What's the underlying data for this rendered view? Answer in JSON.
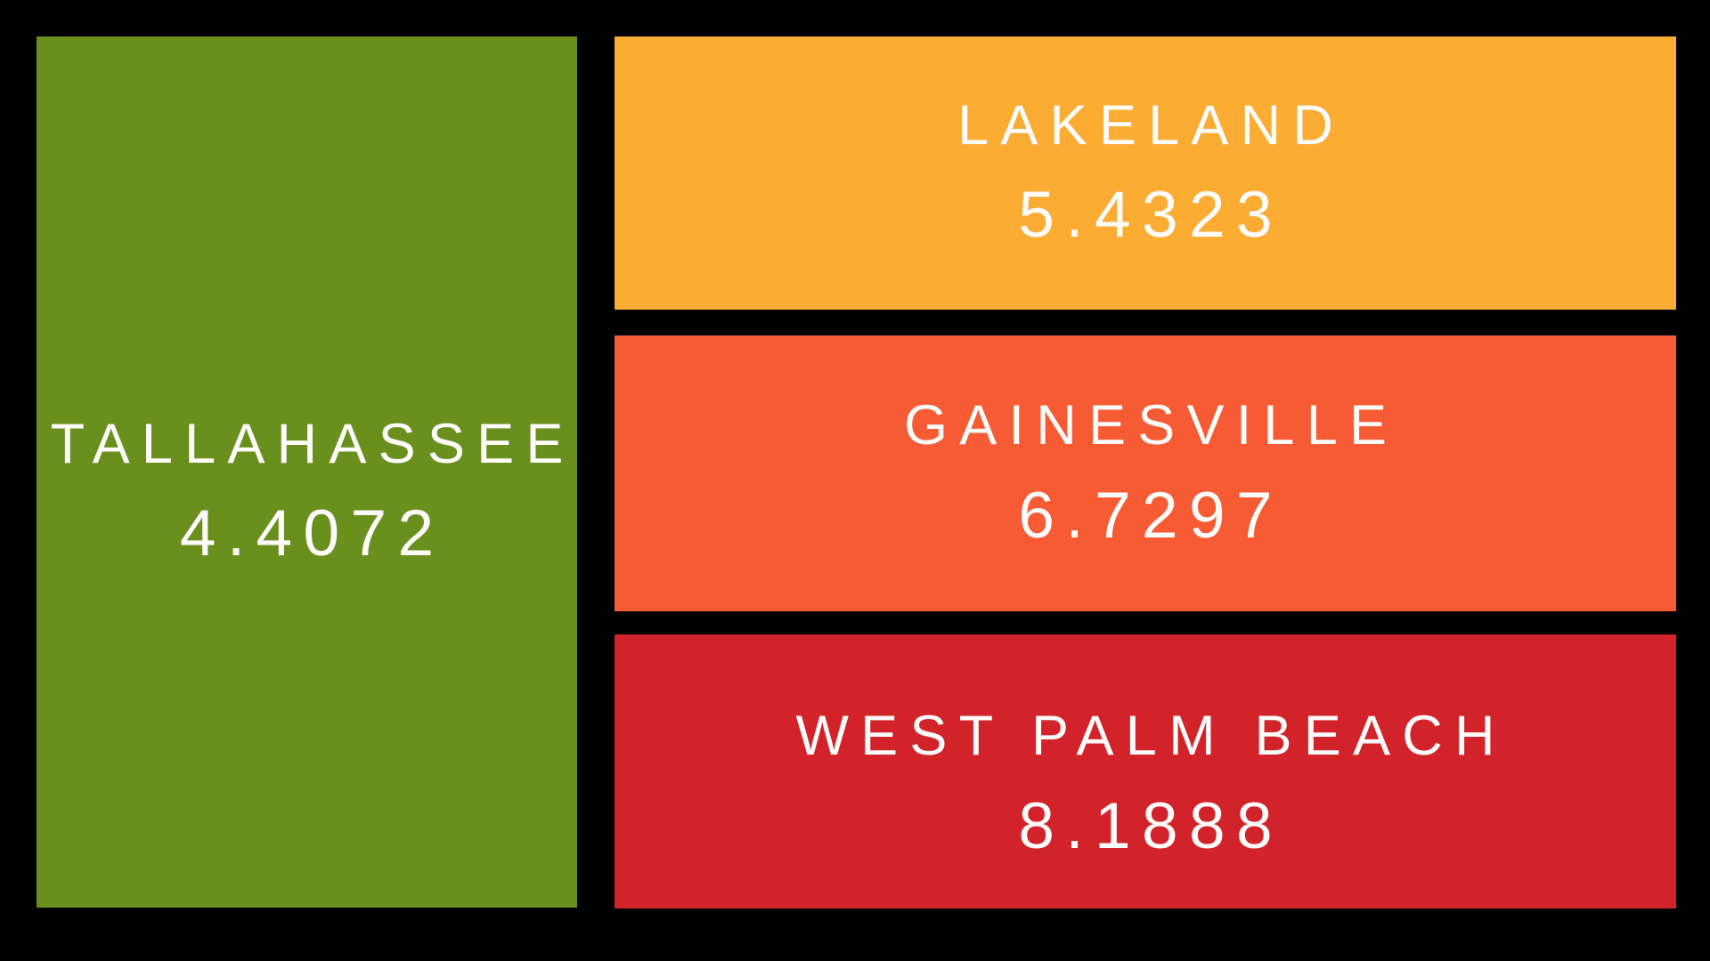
{
  "background": "#000000",
  "text_color": "#FCFCFA",
  "chart_data": {
    "type": "treemap",
    "title": "",
    "categories": [
      "Tallahassee",
      "Lakeland",
      "Gainesville",
      "West Palm Beach"
    ],
    "values": [
      4.4072,
      5.4323,
      6.7297,
      8.1888
    ],
    "colors": [
      "#6A8F1D",
      "#FBAC33",
      "#F75B34",
      "#D2232A"
    ],
    "background": "#000000",
    "legend_position": "none",
    "notes": "Four rectangular tiles on black background; large tall green tile on left, three stacked wide tiles on right; each tile shows uppercase city name above a 4-decimal value in white letter-spaced text"
  },
  "tiles": [
    {
      "id": "tallahassee",
      "label": "TALLAHASSEE",
      "value": "4.4072",
      "color": "#6A8F1D"
    },
    {
      "id": "lakeland",
      "label": "LAKELAND",
      "value": "5.4323",
      "color": "#FBAC33"
    },
    {
      "id": "gainesville",
      "label": "GAINESVILLE",
      "value": "6.7297",
      "color": "#F75B34"
    },
    {
      "id": "west-palm-beach",
      "label": "WEST PALM BEACH",
      "value": "8.1888",
      "color": "#D2232A"
    }
  ]
}
